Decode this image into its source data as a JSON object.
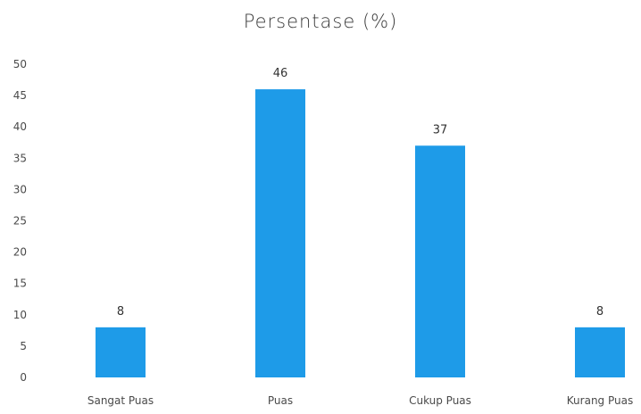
{
  "chart_data": {
    "type": "bar",
    "title": "Persentase (%)",
    "xlabel": "",
    "ylabel": "",
    "categories": [
      "Sangat Puas",
      "Puas",
      "Cukup Puas",
      "Kurang Puas"
    ],
    "values": [
      8,
      46,
      37,
      8
    ],
    "data_labels": [
      "8",
      "46",
      "37",
      "8"
    ],
    "ylim": [
      0,
      50
    ],
    "yticks": [
      0,
      5,
      10,
      15,
      20,
      25,
      30,
      35,
      40,
      45,
      50
    ],
    "grid": false,
    "legend": "none",
    "bar_color": "#1e9be8"
  }
}
